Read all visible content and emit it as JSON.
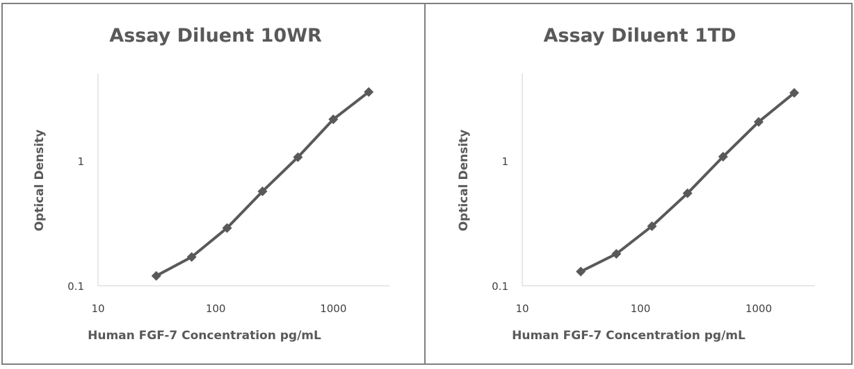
{
  "chart_data": [
    {
      "type": "line",
      "title": "Assay Diluent 10WR",
      "xlabel": "Human FGF-7 Concentration pg/mL",
      "ylabel": "Optical Density",
      "xscale": "log",
      "yscale": "log",
      "xlim": [
        10,
        3000
      ],
      "ylim": [
        0.1,
        5
      ],
      "xticks": [
        10,
        100,
        1000
      ],
      "xtick_labels": [
        "10",
        "100",
        "1000"
      ],
      "yticks": [
        0.1,
        1
      ],
      "ytick_labels": [
        "0.1",
        "1"
      ],
      "grid": false,
      "series": [
        {
          "x": [
            31.25,
            62.5,
            125,
            250,
            500,
            1000,
            2000
          ],
          "y": [
            0.12,
            0.17,
            0.29,
            0.57,
            1.07,
            2.15,
            3.56
          ]
        }
      ]
    },
    {
      "type": "line",
      "title": "Assay Diluent 1TD",
      "xlabel": "Human FGF-7 Concentration pg/mL",
      "ylabel": "Optical Density",
      "xscale": "log",
      "yscale": "log",
      "xlim": [
        10,
        3000
      ],
      "ylim": [
        0.1,
        5
      ],
      "xticks": [
        10,
        100,
        1000
      ],
      "xtick_labels": [
        "10",
        "100",
        "1000"
      ],
      "yticks": [
        0.1,
        1
      ],
      "ytick_labels": [
        "0.1",
        "1"
      ],
      "grid": false,
      "series": [
        {
          "x": [
            31.25,
            62.5,
            125,
            250,
            500,
            1000,
            2000
          ],
          "y": [
            0.13,
            0.18,
            0.3,
            0.55,
            1.08,
            2.05,
            3.5
          ]
        }
      ]
    }
  ]
}
